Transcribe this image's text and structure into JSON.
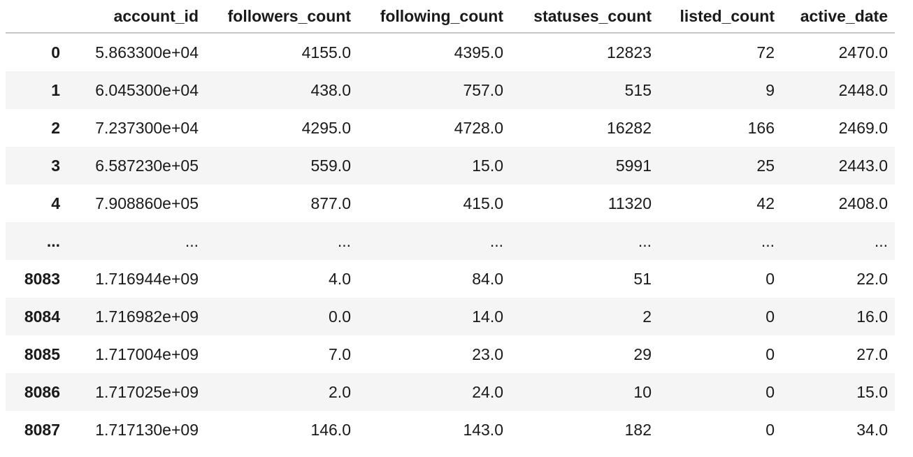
{
  "table": {
    "index_header": "",
    "columns": [
      "account_id",
      "followers_count",
      "following_count",
      "statuses_count",
      "listed_count",
      "active_date"
    ],
    "rows": [
      {
        "index": "0",
        "cells": [
          "5.863300e+04",
          "4155.0",
          "4395.0",
          "12823",
          "72",
          "2470.0"
        ]
      },
      {
        "index": "1",
        "cells": [
          "6.045300e+04",
          "438.0",
          "757.0",
          "515",
          "9",
          "2448.0"
        ]
      },
      {
        "index": "2",
        "cells": [
          "7.237300e+04",
          "4295.0",
          "4728.0",
          "16282",
          "166",
          "2469.0"
        ]
      },
      {
        "index": "3",
        "cells": [
          "6.587230e+05",
          "559.0",
          "15.0",
          "5991",
          "25",
          "2443.0"
        ]
      },
      {
        "index": "4",
        "cells": [
          "7.908860e+05",
          "877.0",
          "415.0",
          "11320",
          "42",
          "2408.0"
        ]
      },
      {
        "index": "...",
        "cells": [
          "...",
          "...",
          "...",
          "...",
          "...",
          "..."
        ]
      },
      {
        "index": "8083",
        "cells": [
          "1.716944e+09",
          "4.0",
          "84.0",
          "51",
          "0",
          "22.0"
        ]
      },
      {
        "index": "8084",
        "cells": [
          "1.716982e+09",
          "0.0",
          "14.0",
          "2",
          "0",
          "16.0"
        ]
      },
      {
        "index": "8085",
        "cells": [
          "1.717004e+09",
          "7.0",
          "23.0",
          "29",
          "0",
          "27.0"
        ]
      },
      {
        "index": "8086",
        "cells": [
          "1.717025e+09",
          "2.0",
          "24.0",
          "10",
          "0",
          "15.0"
        ]
      },
      {
        "index": "8087",
        "cells": [
          "1.717130e+09",
          "146.0",
          "143.0",
          "182",
          "0",
          "34.0"
        ]
      }
    ]
  }
}
